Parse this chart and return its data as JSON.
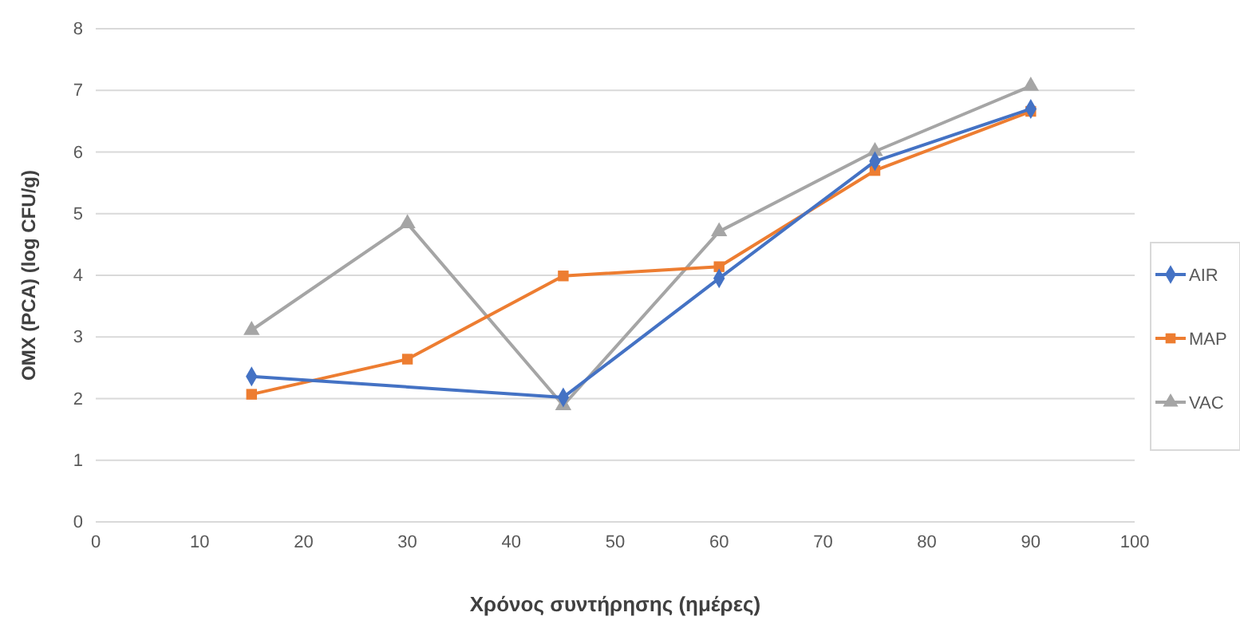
{
  "chart_data": {
    "type": "line",
    "xlabel": "Χρόνος συντήρησης (ημέρες)",
    "ylabel": "ΟΜΧ (PCA) (log CFU/g)",
    "x": [
      15,
      30,
      45,
      60,
      75,
      90
    ],
    "series": [
      {
        "name": "AIR",
        "color": "#4472c4",
        "marker": "diamond",
        "values": [
          2.36,
          null,
          2.02,
          3.95,
          5.85,
          6.7
        ]
      },
      {
        "name": "MAP",
        "color": "#ed7d31",
        "marker": "square",
        "values": [
          2.07,
          2.64,
          3.99,
          4.14,
          5.7,
          6.66
        ]
      },
      {
        "name": "VAC",
        "color": "#a5a5a5",
        "marker": "triangle",
        "values": [
          3.11,
          4.84,
          1.89,
          4.71,
          6.01,
          7.07
        ]
      }
    ],
    "xlim": [
      0,
      100
    ],
    "xticks": [
      0,
      10,
      20,
      30,
      40,
      50,
      60,
      70,
      80,
      90,
      100
    ],
    "ylim": [
      0,
      8
    ],
    "yticks": [
      0,
      1,
      2,
      3,
      4,
      5,
      6,
      7,
      8
    ],
    "grid": "y",
    "legend": "right",
    "line_style": "solid"
  }
}
